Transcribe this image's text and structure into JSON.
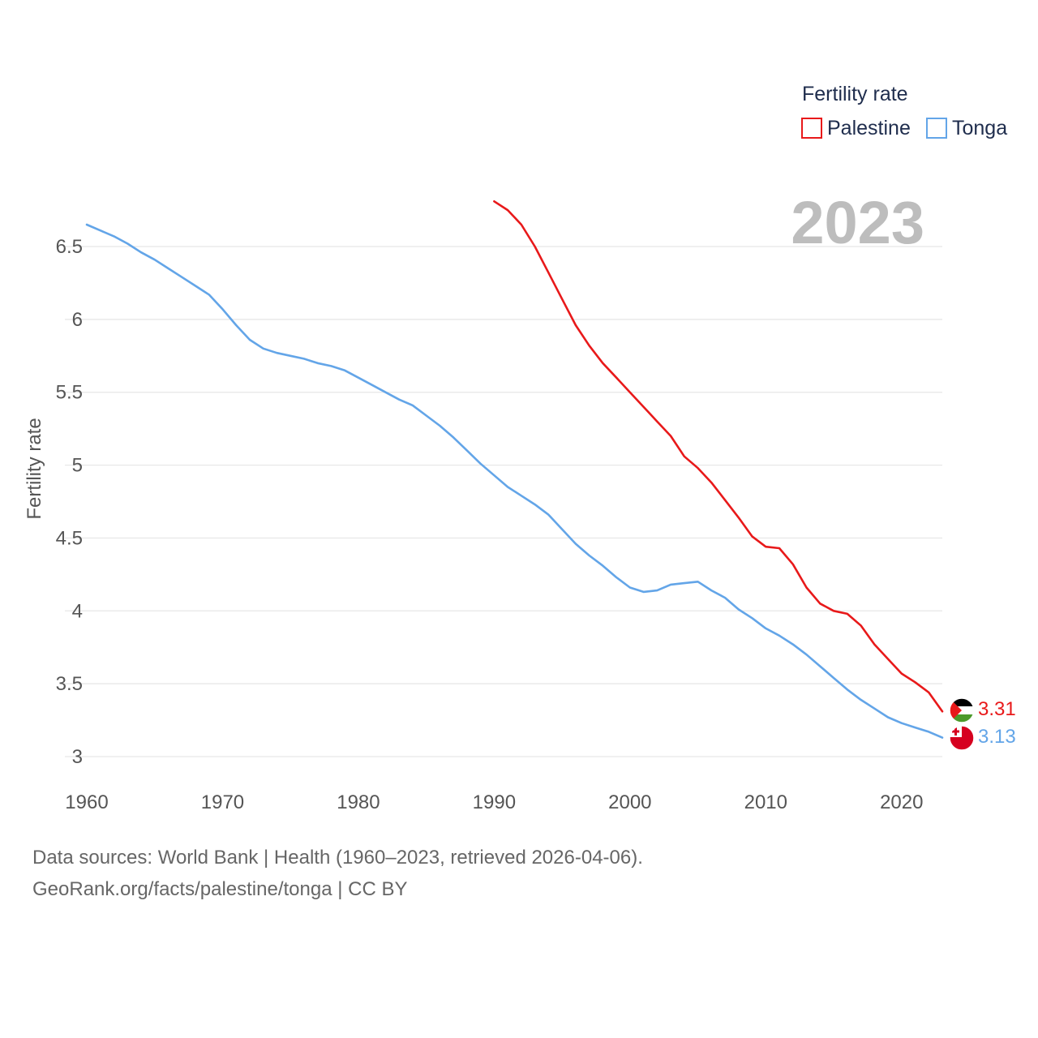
{
  "chart_data": {
    "type": "line",
    "title": "Fertility rate",
    "year_label": "2023",
    "ylabel": "Fertility rate",
    "xlabel": "",
    "xlim": [
      1960,
      2023
    ],
    "ylim": [
      3,
      6.5
    ],
    "x_ticks": [
      1960,
      1970,
      1980,
      1990,
      2000,
      2010,
      2020
    ],
    "y_ticks": [
      {
        "value": 3,
        "label": "3"
      },
      {
        "value": 3.5,
        "label": "3.5"
      },
      {
        "value": 4,
        "label": "4"
      },
      {
        "value": 4.5,
        "label": "4.5"
      },
      {
        "value": 5,
        "label": "5"
      },
      {
        "value": 5.5,
        "label": "5.5"
      },
      {
        "value": 6,
        "label": "6"
      },
      {
        "value": 6.5,
        "label": "6.5"
      }
    ],
    "legend_title": "Fertility rate",
    "series": [
      {
        "name": "Palestine",
        "color": "#e8191a",
        "flag": "palestine-flag",
        "end_label": "3.31",
        "x": [
          1990,
          1991,
          1992,
          1993,
          1994,
          1995,
          1996,
          1997,
          1998,
          1999,
          2000,
          2001,
          2002,
          2003,
          2004,
          2005,
          2006,
          2007,
          2008,
          2009,
          2010,
          2011,
          2012,
          2013,
          2014,
          2015,
          2016,
          2017,
          2018,
          2019,
          2020,
          2021,
          2022,
          2023
        ],
        "values": [
          6.81,
          6.75,
          6.65,
          6.5,
          6.32,
          6.14,
          5.96,
          5.82,
          5.7,
          5.6,
          5.5,
          5.4,
          5.3,
          5.2,
          5.06,
          4.98,
          4.88,
          4.76,
          4.64,
          4.51,
          4.44,
          4.43,
          4.32,
          4.16,
          4.05,
          4.0,
          3.98,
          3.9,
          3.77,
          3.67,
          3.57,
          3.51,
          3.44,
          3.31
        ]
      },
      {
        "name": "Tonga",
        "color": "#63a5e8",
        "flag": "tonga-flag",
        "end_label": "3.13",
        "x": [
          1960,
          1961,
          1962,
          1963,
          1964,
          1965,
          1966,
          1967,
          1968,
          1969,
          1970,
          1971,
          1972,
          1973,
          1974,
          1975,
          1976,
          1977,
          1978,
          1979,
          1980,
          1981,
          1982,
          1983,
          1984,
          1985,
          1986,
          1987,
          1988,
          1989,
          1990,
          1991,
          1992,
          1993,
          1994,
          1995,
          1996,
          1997,
          1998,
          1999,
          2000,
          2001,
          2002,
          2003,
          2004,
          2005,
          2006,
          2007,
          2008,
          2009,
          2010,
          2011,
          2012,
          2013,
          2014,
          2015,
          2016,
          2017,
          2018,
          2019,
          2020,
          2021,
          2022,
          2023
        ],
        "values": [
          6.65,
          6.61,
          6.57,
          6.52,
          6.46,
          6.41,
          6.35,
          6.29,
          6.23,
          6.17,
          6.07,
          5.96,
          5.86,
          5.8,
          5.77,
          5.75,
          5.73,
          5.7,
          5.68,
          5.65,
          5.6,
          5.55,
          5.5,
          5.45,
          5.41,
          5.34,
          5.27,
          5.19,
          5.1,
          5.01,
          4.93,
          4.85,
          4.79,
          4.73,
          4.66,
          4.56,
          4.46,
          4.38,
          4.31,
          4.23,
          4.16,
          4.13,
          4.14,
          4.18,
          4.19,
          4.2,
          4.14,
          4.09,
          4.01,
          3.95,
          3.88,
          3.83,
          3.77,
          3.7,
          3.62,
          3.54,
          3.46,
          3.39,
          3.33,
          3.27,
          3.23,
          3.2,
          3.17,
          3.13
        ]
      }
    ]
  },
  "footer": {
    "source": "Data sources: World Bank | Health (1960–2023, retrieved 2026-04-06).",
    "link": "GeoRank.org/facts/palestine/tonga | CC BY"
  }
}
